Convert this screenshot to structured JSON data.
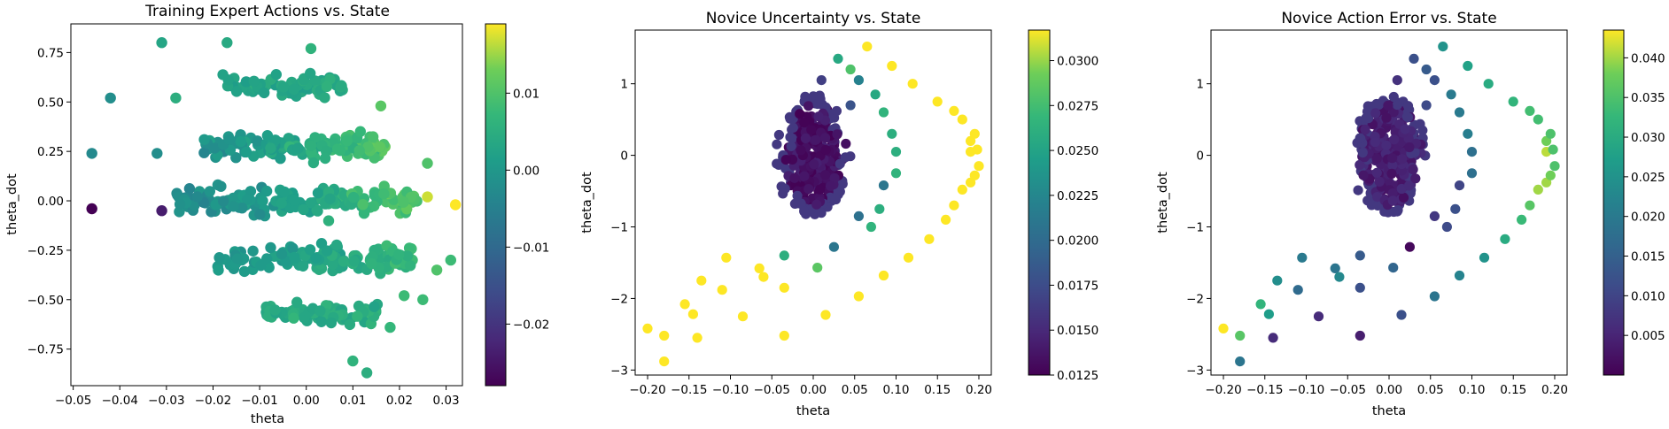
{
  "chart_data": [
    {
      "type": "scatter",
      "title": "Training Expert Actions vs. State",
      "xlabel": "theta",
      "ylabel": "theta_dot",
      "xlim": [
        -0.0505,
        0.0335
      ],
      "ylim": [
        -0.935,
        0.895
      ],
      "xticks": [
        -0.05,
        -0.04,
        -0.03,
        -0.02,
        -0.01,
        0.0,
        0.01,
        0.02,
        0.03
      ],
      "xtick_labels": [
        "−0.05",
        "−0.04",
        "−0.03",
        "−0.02",
        "−0.01",
        "0.00",
        "0.01",
        "0.02",
        "0.03"
      ],
      "yticks": [
        -0.75,
        -0.5,
        -0.25,
        0.0,
        0.25,
        0.5,
        0.75
      ],
      "ytick_labels": [
        "−0.75",
        "−0.50",
        "−0.25",
        "0.00",
        "0.25",
        "0.50",
        "0.75"
      ],
      "colorbar": {
        "label": "",
        "range": [
          -0.028,
          0.019
        ],
        "ticks": [
          -0.02,
          -0.01,
          0.0,
          0.01
        ],
        "tick_labels": [
          "−0.02",
          "−0.01",
          "0.00",
          "0.01"
        ]
      },
      "grid": false,
      "colormap": "viridis",
      "clusters": [
        {
          "y": 0.58,
          "x_range": [
            -0.018,
            0.008
          ],
          "spread": 0.05,
          "count": 75,
          "c_start": 0.003,
          "c_end": 0.004
        },
        {
          "y": 0.28,
          "x_range": [
            -0.022,
            0.017
          ],
          "spread": 0.055,
          "count": 140,
          "c_start": -0.001,
          "c_end": 0.011
        },
        {
          "y": 0.0,
          "x_range": [
            -0.028,
            0.024
          ],
          "spread": 0.055,
          "count": 160,
          "c_start": -0.002,
          "c_end": 0.011
        },
        {
          "y": -0.3,
          "x_range": [
            -0.019,
            0.023
          ],
          "spread": 0.055,
          "count": 130,
          "c_start": 0.0,
          "c_end": 0.008
        },
        {
          "y": -0.57,
          "x_range": [
            -0.009,
            0.016
          ],
          "spread": 0.045,
          "count": 70,
          "c_start": 0.004,
          "c_end": 0.006
        }
      ],
      "points": [
        {
          "x": -0.046,
          "y": -0.04,
          "c": -0.028
        },
        {
          "x": -0.046,
          "y": 0.24,
          "c": -0.003
        },
        {
          "x": -0.042,
          "y": 0.52,
          "c": -0.002
        },
        {
          "x": -0.032,
          "y": 0.24,
          "c": -0.002
        },
        {
          "x": -0.031,
          "y": -0.05,
          "c": -0.024
        },
        {
          "x": -0.031,
          "y": 0.8,
          "c": 0.003
        },
        {
          "x": -0.028,
          "y": 0.52,
          "c": 0.005
        },
        {
          "x": -0.017,
          "y": 0.8,
          "c": 0.004
        },
        {
          "x": 0.001,
          "y": 0.77,
          "c": 0.006
        },
        {
          "x": 0.016,
          "y": 0.48,
          "c": 0.011
        },
        {
          "x": 0.026,
          "y": 0.19,
          "c": 0.01
        },
        {
          "x": 0.026,
          "y": 0.02,
          "c": 0.017
        },
        {
          "x": 0.032,
          "y": -0.02,
          "c": 0.019
        },
        {
          "x": 0.031,
          "y": -0.3,
          "c": 0.008
        },
        {
          "x": 0.028,
          "y": -0.35,
          "c": 0.01
        },
        {
          "x": 0.025,
          "y": -0.5,
          "c": 0.008
        },
        {
          "x": 0.021,
          "y": -0.48,
          "c": 0.008
        },
        {
          "x": 0.01,
          "y": -0.81,
          "c": 0.006
        },
        {
          "x": 0.013,
          "y": -0.87,
          "c": 0.005
        },
        {
          "x": 0.018,
          "y": -0.64,
          "c": 0.007
        }
      ]
    },
    {
      "type": "scatter",
      "title": "Novice Uncertainty vs. State",
      "xlabel": "theta",
      "ylabel": "theta_dot",
      "xlim": [
        -0.215,
        0.215
      ],
      "ylim": [
        -3.07,
        1.75
      ],
      "xticks": [
        -0.2,
        -0.15,
        -0.1,
        -0.05,
        0.0,
        0.05,
        0.1,
        0.15,
        0.2
      ],
      "xtick_labels": [
        "−0.20",
        "−0.15",
        "−0.10",
        "−0.05",
        "0.00",
        "0.05",
        "0.10",
        "0.15",
        "0.20"
      ],
      "yticks": [
        -3,
        -2,
        -1,
        0,
        1
      ],
      "ytick_labels": [
        "−3",
        "−2",
        "−1",
        "0",
        "1"
      ],
      "colorbar": {
        "label": "",
        "range": [
          0.0125,
          0.0317
        ],
        "ticks": [
          0.0125,
          0.015,
          0.0175,
          0.02,
          0.0225,
          0.025,
          0.0275,
          0.03
        ],
        "tick_labels": [
          "0.0125",
          "0.0150",
          "0.0175",
          "0.0200",
          "0.0225",
          "0.0250",
          "0.0275",
          "0.0300"
        ]
      },
      "grid": false,
      "colormap": "viridis",
      "blob": {
        "cx": 0.0,
        "cy": 0.0,
        "rx": 0.045,
        "ry": 0.85,
        "count": 300,
        "c_min": 0.0125,
        "c_max": 0.0145,
        "edge_c": 0.016
      },
      "points": [
        {
          "x": -0.2,
          "y": -2.42,
          "c": 0.0317
        },
        {
          "x": -0.18,
          "y": -2.52,
          "c": 0.0317
        },
        {
          "x": -0.18,
          "y": -2.88,
          "c": 0.0317
        },
        {
          "x": -0.155,
          "y": -2.08,
          "c": 0.0317
        },
        {
          "x": -0.145,
          "y": -2.22,
          "c": 0.0317
        },
        {
          "x": -0.14,
          "y": -2.55,
          "c": 0.0317
        },
        {
          "x": -0.135,
          "y": -1.75,
          "c": 0.0317
        },
        {
          "x": -0.11,
          "y": -1.88,
          "c": 0.0317
        },
        {
          "x": -0.105,
          "y": -1.43,
          "c": 0.0317
        },
        {
          "x": -0.085,
          "y": -2.25,
          "c": 0.0317
        },
        {
          "x": -0.065,
          "y": -1.58,
          "c": 0.0317
        },
        {
          "x": -0.06,
          "y": -1.7,
          "c": 0.0317
        },
        {
          "x": -0.035,
          "y": -1.85,
          "c": 0.0317
        },
        {
          "x": -0.035,
          "y": -2.52,
          "c": 0.0317
        },
        {
          "x": -0.035,
          "y": -1.4,
          "c": 0.026
        },
        {
          "x": 0.005,
          "y": -1.57,
          "c": 0.0285
        },
        {
          "x": 0.015,
          "y": -2.23,
          "c": 0.0317
        },
        {
          "x": 0.025,
          "y": -1.28,
          "c": 0.021
        },
        {
          "x": 0.055,
          "y": -1.97,
          "c": 0.0317
        },
        {
          "x": 0.085,
          "y": -1.68,
          "c": 0.0317
        },
        {
          "x": 0.115,
          "y": -1.43,
          "c": 0.0317
        },
        {
          "x": 0.14,
          "y": -1.17,
          "c": 0.0317
        },
        {
          "x": 0.16,
          "y": -0.9,
          "c": 0.0317
        },
        {
          "x": 0.17,
          "y": -0.7,
          "c": 0.0317
        },
        {
          "x": 0.18,
          "y": -0.48,
          "c": 0.0317
        },
        {
          "x": 0.19,
          "y": -0.38,
          "c": 0.0317
        },
        {
          "x": 0.195,
          "y": -0.28,
          "c": 0.0317
        },
        {
          "x": 0.2,
          "y": -0.15,
          "c": 0.0317
        },
        {
          "x": 0.19,
          "y": 0.05,
          "c": 0.0317
        },
        {
          "x": 0.198,
          "y": 0.08,
          "c": 0.0317
        },
        {
          "x": 0.19,
          "y": 0.2,
          "c": 0.0317
        },
        {
          "x": 0.195,
          "y": 0.3,
          "c": 0.0317
        },
        {
          "x": 0.18,
          "y": 0.5,
          "c": 0.0317
        },
        {
          "x": 0.17,
          "y": 0.62,
          "c": 0.0317
        },
        {
          "x": 0.15,
          "y": 0.75,
          "c": 0.0317
        },
        {
          "x": 0.12,
          "y": 1.0,
          "c": 0.0317
        },
        {
          "x": 0.095,
          "y": 1.25,
          "c": 0.0317
        },
        {
          "x": 0.065,
          "y": 1.52,
          "c": 0.0317
        },
        {
          "x": 0.03,
          "y": 1.35,
          "c": 0.0255
        },
        {
          "x": 0.045,
          "y": 1.2,
          "c": 0.028
        },
        {
          "x": 0.055,
          "y": 1.05,
          "c": 0.022
        },
        {
          "x": 0.075,
          "y": 0.85,
          "c": 0.0255
        },
        {
          "x": 0.085,
          "y": 0.6,
          "c": 0.0265
        },
        {
          "x": 0.095,
          "y": 0.3,
          "c": 0.026
        },
        {
          "x": 0.1,
          "y": 0.05,
          "c": 0.026
        },
        {
          "x": 0.1,
          "y": -0.25,
          "c": 0.0265
        },
        {
          "x": 0.085,
          "y": -0.42,
          "c": 0.021
        },
        {
          "x": 0.08,
          "y": -0.75,
          "c": 0.026
        },
        {
          "x": 0.07,
          "y": -1.0,
          "c": 0.0265
        },
        {
          "x": 0.055,
          "y": -0.85,
          "c": 0.0205
        },
        {
          "x": 0.01,
          "y": 1.05,
          "c": 0.0165
        },
        {
          "x": 0.045,
          "y": 0.7,
          "c": 0.018
        }
      ]
    },
    {
      "type": "scatter",
      "title": "Novice Action Error vs. State",
      "xlabel": "theta",
      "ylabel": "theta_dot",
      "xlim": [
        -0.215,
        0.215
      ],
      "ylim": [
        -3.07,
        1.75
      ],
      "xticks": [
        -0.2,
        -0.15,
        -0.1,
        -0.05,
        0.0,
        0.05,
        0.1,
        0.15,
        0.2
      ],
      "xtick_labels": [
        "−0.20",
        "−0.15",
        "−0.10",
        "−0.05",
        "0.00",
        "0.05",
        "0.10",
        "0.15",
        "0.20"
      ],
      "yticks": [
        -3,
        -2,
        -1,
        0,
        1
      ],
      "ytick_labels": [
        "−3",
        "−2",
        "−1",
        "0",
        "1"
      ],
      "colorbar": {
        "label": "",
        "range": [
          0.0,
          0.0435
        ],
        "ticks": [
          0.005,
          0.01,
          0.015,
          0.02,
          0.025,
          0.03,
          0.035,
          0.04
        ],
        "tick_labels": [
          "0.005",
          "0.010",
          "0.015",
          "0.020",
          "0.025",
          "0.030",
          "0.035",
          "0.040"
        ]
      },
      "grid": false,
      "colormap": "viridis",
      "blob": {
        "cx": 0.0,
        "cy": 0.0,
        "rx": 0.045,
        "ry": 0.85,
        "count": 300,
        "c_min": 0.002,
        "c_max": 0.006,
        "edge_c": 0.008
      },
      "points": [
        {
          "x": -0.2,
          "y": -2.42,
          "c": 0.0435
        },
        {
          "x": -0.18,
          "y": -2.52,
          "c": 0.036
        },
        {
          "x": -0.18,
          "y": -2.88,
          "c": 0.019
        },
        {
          "x": -0.155,
          "y": -2.08,
          "c": 0.032
        },
        {
          "x": -0.145,
          "y": -2.22,
          "c": 0.027
        },
        {
          "x": -0.14,
          "y": -2.55,
          "c": 0.006
        },
        {
          "x": -0.135,
          "y": -1.75,
          "c": 0.024
        },
        {
          "x": -0.11,
          "y": -1.88,
          "c": 0.017
        },
        {
          "x": -0.105,
          "y": -1.43,
          "c": 0.02
        },
        {
          "x": -0.085,
          "y": -2.25,
          "c": 0.006
        },
        {
          "x": -0.065,
          "y": -1.58,
          "c": 0.019
        },
        {
          "x": -0.06,
          "y": -1.7,
          "c": 0.023
        },
        {
          "x": -0.035,
          "y": -1.85,
          "c": 0.012
        },
        {
          "x": -0.035,
          "y": -2.52,
          "c": 0.004
        },
        {
          "x": -0.035,
          "y": -1.4,
          "c": 0.014
        },
        {
          "x": 0.005,
          "y": -1.57,
          "c": 0.016
        },
        {
          "x": 0.015,
          "y": -2.23,
          "c": 0.012
        },
        {
          "x": 0.025,
          "y": -1.28,
          "c": 0.001
        },
        {
          "x": 0.055,
          "y": -1.97,
          "c": 0.019
        },
        {
          "x": 0.085,
          "y": -1.68,
          "c": 0.022
        },
        {
          "x": 0.115,
          "y": -1.43,
          "c": 0.025
        },
        {
          "x": 0.14,
          "y": -1.17,
          "c": 0.03
        },
        {
          "x": 0.16,
          "y": -0.9,
          "c": 0.033
        },
        {
          "x": 0.17,
          "y": -0.7,
          "c": 0.036
        },
        {
          "x": 0.18,
          "y": -0.48,
          "c": 0.04
        },
        {
          "x": 0.19,
          "y": -0.38,
          "c": 0.04
        },
        {
          "x": 0.195,
          "y": -0.28,
          "c": 0.038
        },
        {
          "x": 0.2,
          "y": -0.15,
          "c": 0.035
        },
        {
          "x": 0.19,
          "y": 0.05,
          "c": 0.041
        },
        {
          "x": 0.198,
          "y": 0.08,
          "c": 0.035
        },
        {
          "x": 0.19,
          "y": 0.2,
          "c": 0.038
        },
        {
          "x": 0.195,
          "y": 0.3,
          "c": 0.035
        },
        {
          "x": 0.18,
          "y": 0.5,
          "c": 0.034
        },
        {
          "x": 0.17,
          "y": 0.62,
          "c": 0.034
        },
        {
          "x": 0.15,
          "y": 0.75,
          "c": 0.032
        },
        {
          "x": 0.12,
          "y": 1.0,
          "c": 0.03
        },
        {
          "x": 0.095,
          "y": 1.25,
          "c": 0.028
        },
        {
          "x": 0.065,
          "y": 1.52,
          "c": 0.025
        },
        {
          "x": 0.03,
          "y": 1.35,
          "c": 0.012
        },
        {
          "x": 0.045,
          "y": 1.2,
          "c": 0.014
        },
        {
          "x": 0.055,
          "y": 1.05,
          "c": 0.012
        },
        {
          "x": 0.075,
          "y": 0.85,
          "c": 0.02
        },
        {
          "x": 0.085,
          "y": 0.6,
          "c": 0.02
        },
        {
          "x": 0.095,
          "y": 0.3,
          "c": 0.021
        },
        {
          "x": 0.1,
          "y": 0.05,
          "c": 0.018
        },
        {
          "x": 0.1,
          "y": -0.25,
          "c": 0.018
        },
        {
          "x": 0.085,
          "y": -0.42,
          "c": 0.01
        },
        {
          "x": 0.08,
          "y": -0.75,
          "c": 0.012
        },
        {
          "x": 0.07,
          "y": -1.0,
          "c": 0.011
        },
        {
          "x": 0.055,
          "y": -0.85,
          "c": 0.008
        },
        {
          "x": 0.01,
          "y": 1.05,
          "c": 0.007
        },
        {
          "x": 0.045,
          "y": 0.7,
          "c": 0.011
        }
      ]
    }
  ]
}
